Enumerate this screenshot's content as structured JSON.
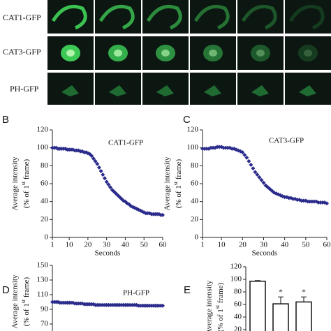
{
  "image_rows": [
    {
      "label": "CAT1-GFP"
    },
    {
      "label": "CAT3-GFP"
    },
    {
      "label": "PH-GFP"
    }
  ],
  "chart_data": [
    {
      "type": "scatter",
      "panel": "B",
      "annotation": "CAT1-GFP",
      "xlabel": "Seconds",
      "ylabel": [
        "Average intensity",
        "(% of 1",
        "st",
        " frame)"
      ],
      "color": "#2b2b8c",
      "xlim": [
        1,
        60
      ],
      "xticks": [
        1,
        10,
        20,
        30,
        40,
        50,
        60
      ],
      "ylim": [
        0,
        120
      ],
      "yticks": [
        0,
        20,
        40,
        60,
        80,
        100,
        120
      ],
      "x": [
        1,
        2,
        3,
        4,
        5,
        6,
        7,
        8,
        9,
        10,
        11,
        12,
        13,
        14,
        15,
        16,
        17,
        18,
        19,
        20,
        21,
        22,
        23,
        24,
        25,
        26,
        27,
        28,
        29,
        30,
        31,
        32,
        33,
        34,
        35,
        36,
        37,
        38,
        39,
        40,
        41,
        42,
        43,
        44,
        45,
        46,
        47,
        48,
        49,
        50,
        51,
        52,
        53,
        54,
        55,
        56,
        57,
        58,
        59,
        60
      ],
      "values": [
        100,
        100,
        100,
        99,
        99,
        99,
        99,
        99,
        98,
        98,
        98,
        98,
        97,
        97,
        97,
        96,
        96,
        95,
        95,
        94,
        93,
        91,
        88,
        85,
        82,
        78,
        74,
        70,
        66,
        62,
        59,
        56,
        53,
        51,
        49,
        47,
        45,
        43,
        41,
        40,
        38,
        37,
        35,
        34,
        33,
        32,
        31,
        30,
        29,
        28,
        27,
        27,
        27,
        26,
        26,
        26,
        26,
        26,
        25,
        25
      ]
    },
    {
      "type": "scatter",
      "panel": "C",
      "annotation": "CAT3-GFP",
      "xlabel": "Seconds",
      "ylabel": [
        "Average intensity",
        "(% of 1",
        "st",
        " frame)"
      ],
      "color": "#2b2b8c",
      "xlim": [
        1,
        60
      ],
      "xticks": [
        1,
        10,
        20,
        30,
        40,
        50,
        60
      ],
      "ylim": [
        0,
        120
      ],
      "yticks": [
        0,
        20,
        40,
        60,
        80,
        100,
        120
      ],
      "x": [
        1,
        2,
        3,
        4,
        5,
        6,
        7,
        8,
        9,
        10,
        11,
        12,
        13,
        14,
        15,
        16,
        17,
        18,
        19,
        20,
        21,
        22,
        23,
        24,
        25,
        26,
        27,
        28,
        29,
        30,
        31,
        32,
        33,
        34,
        35,
        36,
        37,
        38,
        39,
        40,
        41,
        42,
        43,
        44,
        45,
        46,
        47,
        48,
        49,
        50,
        51,
        52,
        53,
        54,
        55,
        56,
        57,
        58,
        59,
        60
      ],
      "values": [
        99,
        99,
        99,
        99,
        100,
        100,
        100,
        101,
        101,
        101,
        100,
        100,
        100,
        100,
        99,
        99,
        98,
        97,
        96,
        95,
        92,
        89,
        85,
        81,
        77,
        73,
        70,
        67,
        64,
        61,
        58,
        56,
        54,
        52,
        50,
        49,
        48,
        47,
        46,
        45,
        45,
        44,
        44,
        43,
        43,
        42,
        42,
        41,
        41,
        41,
        40,
        40,
        40,
        40,
        40,
        39,
        39,
        39,
        39,
        38
      ]
    },
    {
      "type": "scatter",
      "panel": "D",
      "annotation": "PH-GFP",
      "ylabel": [
        "Average intensity",
        "(% of 1",
        "st",
        " frame)"
      ],
      "color": "#2b2b8c",
      "xlim": [
        1,
        60
      ],
      "ylim": [
        60,
        150
      ],
      "yticks": [
        70,
        90,
        110,
        130,
        150
      ],
      "x": [
        1,
        2,
        3,
        4,
        5,
        6,
        7,
        8,
        9,
        10,
        11,
        12,
        13,
        14,
        15,
        16,
        17,
        18,
        19,
        20,
        21,
        22,
        23,
        24,
        25,
        26,
        27,
        28,
        29,
        30,
        31,
        32,
        33,
        34,
        35,
        36,
        37,
        38,
        39,
        40,
        41,
        42,
        43,
        44,
        45,
        46,
        47,
        48,
        49,
        50,
        51,
        52,
        53,
        54,
        55,
        56,
        57,
        58,
        59,
        60
      ],
      "values": [
        100,
        100,
        100,
        100,
        99,
        99,
        99,
        99,
        99,
        99,
        99,
        99,
        98,
        98,
        98,
        98,
        98,
        97,
        97,
        97,
        97,
        97,
        97,
        96,
        96,
        96,
        96,
        96,
        96,
        96,
        96,
        96,
        96,
        96,
        96,
        96,
        96,
        96,
        96,
        96,
        96,
        96,
        96,
        96,
        96,
        96,
        95,
        95,
        95,
        95,
        95,
        95,
        95,
        95,
        95,
        95,
        95,
        95,
        95,
        95
      ]
    },
    {
      "type": "bar",
      "panel": "E",
      "ylabel": [
        "Average intensity",
        "(% of 1",
        "st",
        " frame)"
      ],
      "color": "#ffffff",
      "ylim": [
        0,
        120
      ],
      "yticks": [
        20,
        40,
        60,
        80,
        100,
        120
      ],
      "categories": [
        null,
        null,
        null
      ],
      "values": [
        97,
        61,
        64
      ],
      "errors": [
        1,
        11,
        8
      ],
      "annotations": [
        null,
        "*",
        "*"
      ]
    }
  ]
}
